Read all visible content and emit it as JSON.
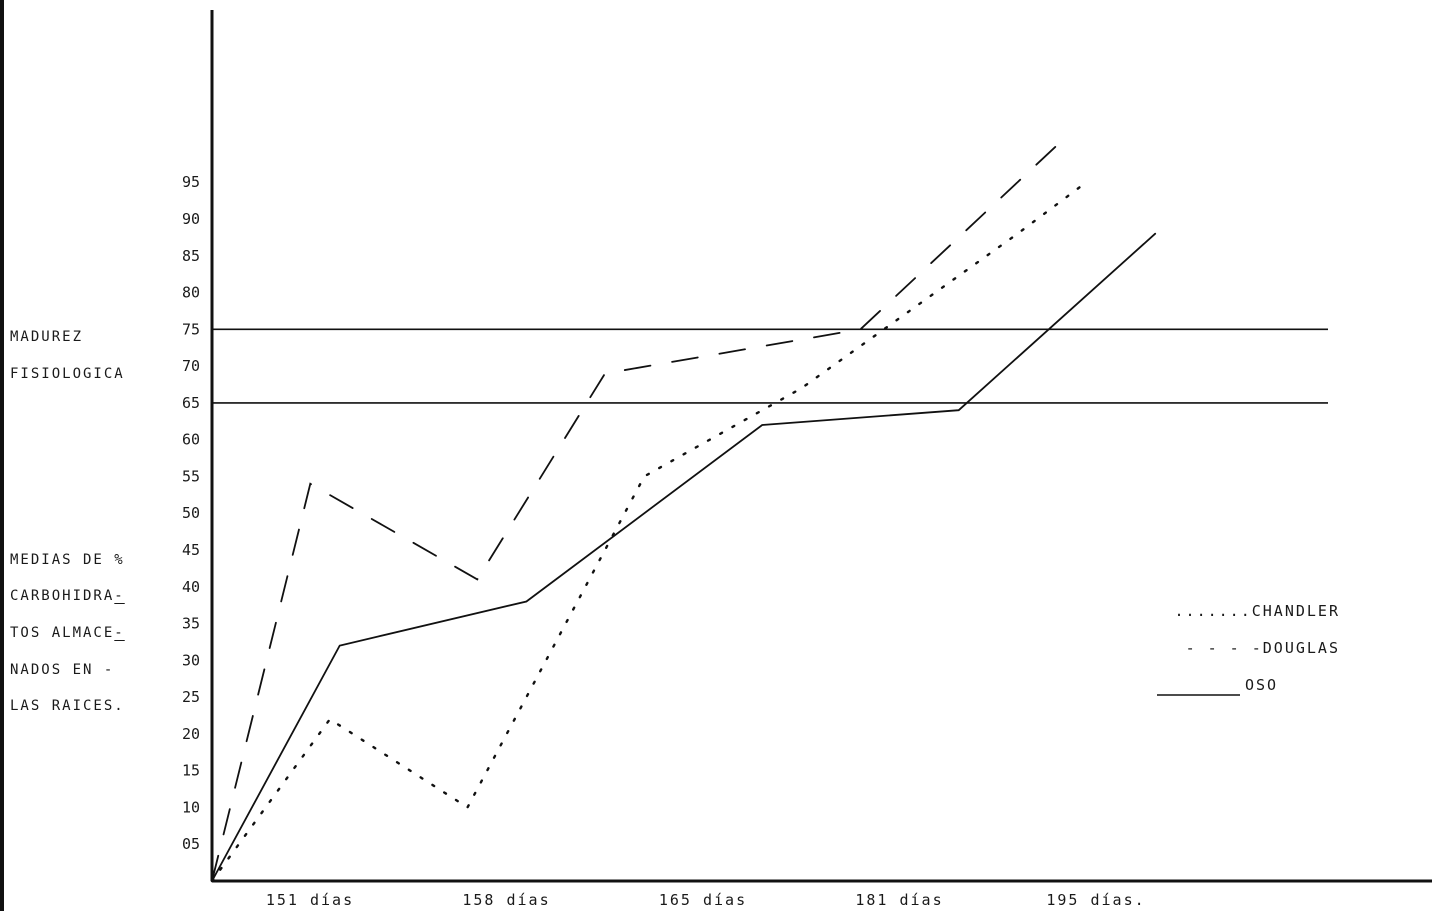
{
  "chart_data": {
    "type": "line",
    "categories": [
      "151 días",
      "158 días",
      "165 días",
      "181 días",
      "195 días."
    ],
    "ylim": [
      0,
      115
    ],
    "y_ticks": [
      "05",
      "10",
      "15",
      "20",
      "25",
      "30",
      "35",
      "40",
      "45",
      "50",
      "55",
      "60",
      "65",
      "70",
      "75",
      "80",
      "85",
      "90",
      "95"
    ],
    "side_labels": {
      "madurez": [
        "MADUREZ",
        "FISIOLOGICA"
      ],
      "medias": [
        {
          "text": "MEDIAS DE %",
          "underline": ""
        },
        {
          "text": "CARBOHIDRA",
          "underline": "-"
        },
        {
          "text": "TOS ALMACE",
          "underline": "-"
        },
        {
          "text": "NADOS EN  -",
          "underline": ""
        },
        {
          "text": "LAS RAICES.",
          "underline": ""
        }
      ]
    },
    "reference_lines": [
      75,
      65
    ],
    "series": [
      {
        "name": "CHANDLER",
        "legend_text": ".......CHANDLER",
        "style": "dotted",
        "points": [
          [
            0,
            0
          ],
          [
            0.6,
            22
          ],
          [
            1.3,
            10
          ],
          [
            2.2,
            55
          ],
          [
            3.0,
            67
          ],
          [
            4.1,
            88
          ],
          [
            4.45,
            95
          ]
        ]
      },
      {
        "name": "DOUGLAS",
        "legend_text": "- - - -DOUGLAS",
        "style": "dashed",
        "points": [
          [
            0,
            0
          ],
          [
            0.5,
            54
          ],
          [
            1.35,
            41
          ],
          [
            2.0,
            69
          ],
          [
            3.3,
            75
          ],
          [
            4.3,
            100
          ]
        ]
      },
      {
        "name": "OSO",
        "legend_text": "OSO",
        "style": "solid",
        "points": [
          [
            0,
            0
          ],
          [
            0.65,
            32
          ],
          [
            1.6,
            38
          ],
          [
            2.8,
            62
          ],
          [
            3.8,
            64
          ],
          [
            4.8,
            88
          ]
        ]
      }
    ],
    "legend_position": "right"
  }
}
